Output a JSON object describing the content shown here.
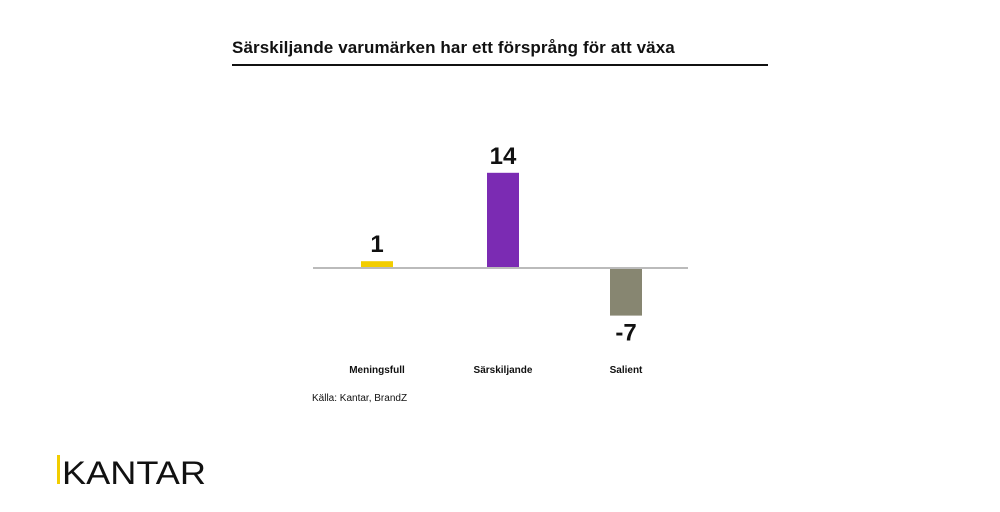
{
  "title": "Särskiljande varumärken har ett försprång för att växa",
  "source": "Källa: Kantar, BrandZ",
  "logo_text": "KANTAR",
  "colors": {
    "accent": "#f2cd00",
    "bar_meaningful": "#f2cd00",
    "bar_different": "#7b2bb3",
    "bar_salient": "#878671",
    "baseline": "#bbbbbb",
    "text": "#111111"
  },
  "chart_data": {
    "type": "bar",
    "title": "Särskiljande varumärken har ett försprång för att växa",
    "categories": [
      "Meningsfull",
      "Särskiljande",
      "Salient"
    ],
    "values": [
      1,
      14,
      -7
    ],
    "value_labels": [
      "1",
      "14",
      "-7"
    ],
    "xlabel": "",
    "ylabel": "",
    "ylim": [
      -7,
      14
    ],
    "grid": false,
    "legend": "none"
  }
}
